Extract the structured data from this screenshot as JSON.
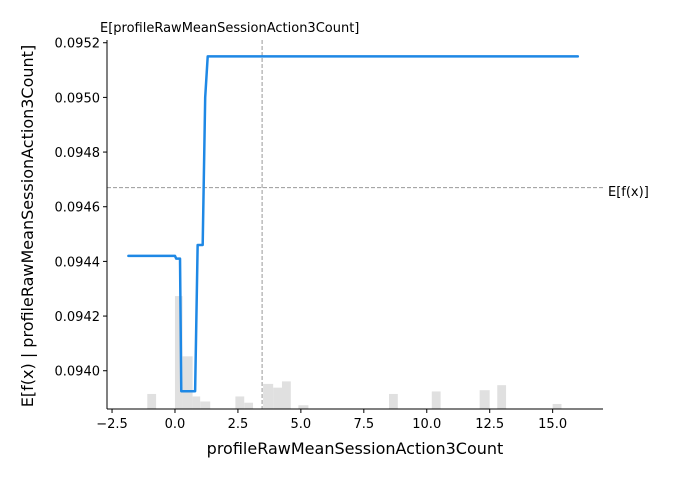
{
  "chart_data": {
    "type": "line",
    "title": "",
    "xlabel": "profileRawMeanSessionAction3Count",
    "ylabel": "E[f(x) | profileRawMeanSessionAction3Count]",
    "xlim": [
      -2.7,
      17.0
    ],
    "ylim": [
      0.09386,
      0.09521
    ],
    "x_ticks": [
      -2.5,
      0.0,
      2.5,
      5.0,
      7.5,
      10.0,
      12.5,
      15.0
    ],
    "x_tick_labels": [
      "−2.5",
      "0.0",
      "2.5",
      "5.0",
      "7.5",
      "10.0",
      "12.5",
      "15.0"
    ],
    "y_ticks": [
      0.094,
      0.0942,
      0.0944,
      0.0946,
      0.0948,
      0.095,
      0.0952
    ],
    "y_tick_labels": [
      "0.0940",
      "0.0942",
      "0.0944",
      "0.0946",
      "0.0948",
      "0.0950",
      "0.0952"
    ],
    "grid": false,
    "series": [
      {
        "color": "#1e88e5",
        "x": [
          -1.85,
          0.0,
          0.05,
          0.2,
          0.25,
          0.8,
          0.9,
          1.1,
          1.2,
          1.3,
          16.0
        ],
        "y": [
          0.09442,
          0.09442,
          0.09441,
          0.09441,
          0.093925,
          0.093925,
          0.09446,
          0.09446,
          0.095,
          0.09515,
          0.09515
        ]
      }
    ],
    "reference_lines": {
      "horizontal": {
        "y": 0.09467,
        "label": "E[f(x)]",
        "color": "#999999"
      },
      "vertical": {
        "x": 3.46,
        "label": "E[profileRawMeanSessionAction3Count]",
        "color": "#999999"
      }
    },
    "histogram": {
      "color": "#e0e0e0",
      "bin_edges": [
        -2.0,
        -1.0,
        0.0,
        0.4,
        0.8,
        1.2,
        1.6,
        2.4,
        2.8,
        3.2,
        3.6,
        4.0,
        4.4,
        5.0,
        5.6,
        8.4,
        8.8,
        10.0,
        10.4,
        12.0,
        12.4,
        12.8,
        13.2,
        15.0,
        15.4
      ],
      "bins": [
        {
          "x0": -1.1,
          "x1": -0.75,
          "count": 0.12
        },
        {
          "x0": 0.0,
          "x1": 0.3,
          "count": 0.9
        },
        {
          "x0": 0.3,
          "x1": 0.7,
          "count": 0.42
        },
        {
          "x0": 0.7,
          "x1": 1.0,
          "count": 0.1
        },
        {
          "x0": 1.0,
          "x1": 1.4,
          "count": 0.06
        },
        {
          "x0": 2.4,
          "x1": 2.75,
          "count": 0.1
        },
        {
          "x0": 2.75,
          "x1": 3.1,
          "count": 0.05
        },
        {
          "x0": 3.5,
          "x1": 3.9,
          "count": 0.2
        },
        {
          "x0": 3.9,
          "x1": 4.25,
          "count": 0.17
        },
        {
          "x0": 4.25,
          "x1": 4.6,
          "count": 0.22
        },
        {
          "x0": 4.9,
          "x1": 5.3,
          "count": 0.03
        },
        {
          "x0": 8.5,
          "x1": 8.85,
          "count": 0.12
        },
        {
          "x0": 10.2,
          "x1": 10.55,
          "count": 0.14
        },
        {
          "x0": 12.1,
          "x1": 12.5,
          "count": 0.15
        },
        {
          "x0": 12.8,
          "x1": 13.15,
          "count": 0.19
        },
        {
          "x0": 15.0,
          "x1": 15.35,
          "count": 0.04
        }
      ],
      "max_fraction_of_axis": 0.34
    }
  }
}
